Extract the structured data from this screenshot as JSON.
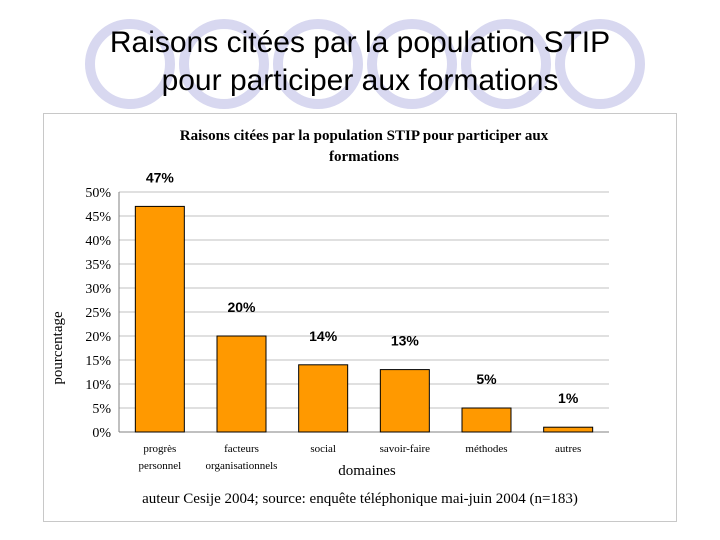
{
  "slide": {
    "title_line1": "Raisons citées par la population STIP",
    "title_line2": "pour participer aux formations"
  },
  "chart_data": {
    "type": "bar",
    "title_line1": "Raisons citées par la population STIP pour participer aux",
    "title_line2": "formations",
    "categories": [
      [
        "progrès",
        "personnel"
      ],
      [
        "facteurs",
        "organisationnels"
      ],
      [
        "social"
      ],
      [
        "savoir-faire"
      ],
      [
        "méthodes"
      ],
      [
        "autres"
      ]
    ],
    "values": [
      47,
      20,
      14,
      13,
      5,
      1
    ],
    "data_labels": [
      "47%",
      "20%",
      "14%",
      "13%",
      "5%",
      "1%"
    ],
    "ylim": [
      0,
      50
    ],
    "yticks": [
      0,
      5,
      10,
      15,
      20,
      25,
      30,
      35,
      40,
      45,
      50
    ],
    "ytick_labels": [
      "0%",
      "5%",
      "10%",
      "15%",
      "20%",
      "25%",
      "30%",
      "35%",
      "40%",
      "45%",
      "50%"
    ],
    "xlabel": "domaines",
    "ylabel": "pourcentage",
    "source": "auteur Cesije 2004; source: enquête téléphonique mai-juin 2004 (n=183)",
    "grid": true,
    "bar_color": "#ff9900",
    "bar_edge_color": "#000000",
    "grid_color": "#c0c0c0"
  }
}
